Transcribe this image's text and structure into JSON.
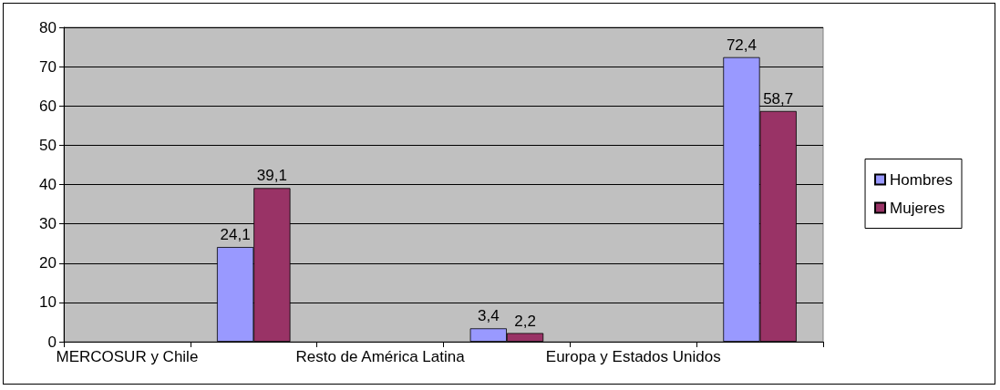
{
  "chart_data": {
    "type": "bar",
    "categories": [
      "MERCOSUR y Chile",
      null,
      "Resto de América Latina",
      null,
      "Europa y Estados Unidos",
      null
    ],
    "series": [
      {
        "name": "Hombres",
        "color": "#9999ff",
        "values": [
          null,
          24.1,
          null,
          3.4,
          null,
          72.4
        ],
        "value_labels": [
          null,
          "24,1",
          null,
          "3,4",
          null,
          "72,4"
        ]
      },
      {
        "name": "Mujeres",
        "color": "#993366",
        "values": [
          null,
          39.1,
          null,
          2.2,
          null,
          58.7
        ],
        "value_labels": [
          null,
          "39,1",
          null,
          "2,2",
          null,
          "58,7"
        ]
      }
    ],
    "ylim": [
      0,
      80
    ],
    "yticks": [
      0,
      10,
      20,
      30,
      40,
      50,
      60,
      70,
      80
    ],
    "grid": "y",
    "legend": "right"
  }
}
